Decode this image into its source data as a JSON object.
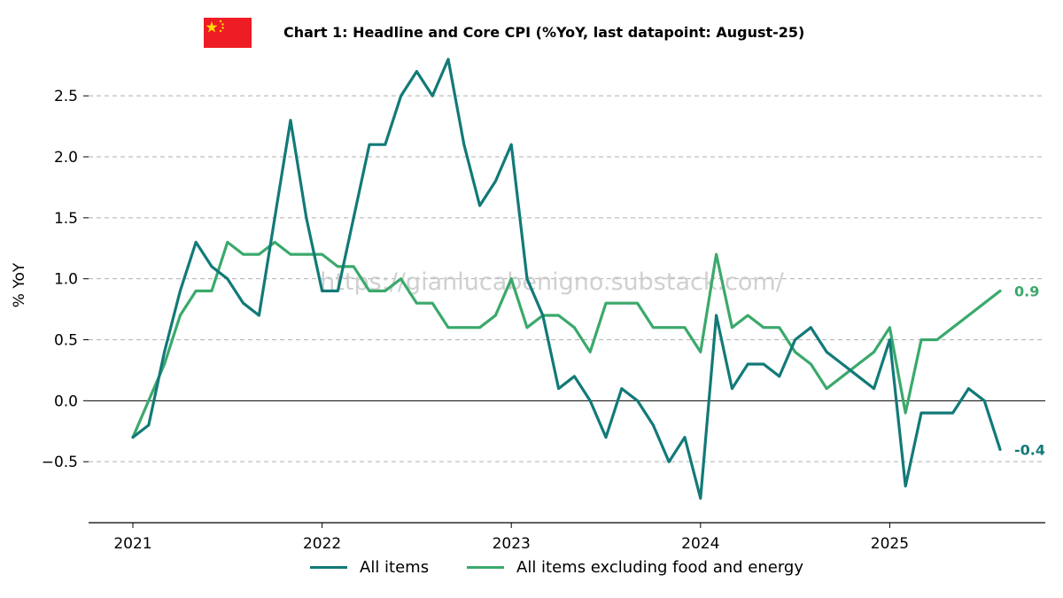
{
  "header": {
    "title": "Chart 1: Headline and Core CPI (%YoY, last datapoint: August-25)",
    "flag_icon": "china-flag-icon",
    "flag_colors": {
      "field": "#ee1c25",
      "stars": "#ffde00"
    }
  },
  "watermark": "https://gianlucabenigno.substack.com/",
  "colors": {
    "headline": "#127a78",
    "core": "#3aa96b",
    "zero_line": "#000000",
    "grid": "#b0b0b0"
  },
  "chart_data": {
    "type": "line",
    "title": "Chart 1: Headline and Core CPI (%YoY, last datapoint: August-25)",
    "ylabel": "% YoY",
    "xlabel": "",
    "ylim": [
      -1.0,
      2.85
    ],
    "xlim": [
      "2020-10",
      "2025-11"
    ],
    "yticks": [
      -0.5,
      0.0,
      0.5,
      1.0,
      1.5,
      2.0,
      2.5
    ],
    "ytick_labels": [
      "−0.5",
      "0.0",
      "0.5",
      "1.0",
      "1.5",
      "2.0",
      "2.5"
    ],
    "xticks": [
      "2021-01",
      "2022-01",
      "2023-01",
      "2024-01",
      "2025-01"
    ],
    "xtick_labels": [
      "2021",
      "2022",
      "2023",
      "2024",
      "2025"
    ],
    "grid": "horizontal dashed",
    "legend_position": "bottom-center",
    "x": [
      "2021-01",
      "2021-02",
      "2021-03",
      "2021-04",
      "2021-05",
      "2021-06",
      "2021-07",
      "2021-08",
      "2021-09",
      "2021-10",
      "2021-11",
      "2021-12",
      "2022-01",
      "2022-02",
      "2022-03",
      "2022-04",
      "2022-05",
      "2022-06",
      "2022-07",
      "2022-08",
      "2022-09",
      "2022-10",
      "2022-11",
      "2022-12",
      "2023-01",
      "2023-02",
      "2023-03",
      "2023-04",
      "2023-05",
      "2023-06",
      "2023-07",
      "2023-08",
      "2023-09",
      "2023-10",
      "2023-11",
      "2023-12",
      "2024-01",
      "2024-02",
      "2024-03",
      "2024-04",
      "2024-05",
      "2024-06",
      "2024-07",
      "2024-08",
      "2024-09",
      "2024-10",
      "2024-11",
      "2024-12",
      "2025-01",
      "2025-02",
      "2025-03",
      "2025-04",
      "2025-05",
      "2025-06",
      "2025-07",
      "2025-08"
    ],
    "series": [
      {
        "name": "All items",
        "color": "#127a78",
        "end_label": "-0.4",
        "values": [
          -0.3,
          -0.2,
          0.4,
          0.9,
          1.3,
          1.1,
          1.0,
          0.8,
          0.7,
          1.5,
          2.3,
          1.5,
          0.9,
          0.9,
          1.5,
          2.1,
          2.1,
          2.5,
          2.7,
          2.5,
          2.8,
          2.1,
          1.6,
          1.8,
          2.1,
          1.0,
          0.7,
          0.1,
          0.2,
          0.0,
          -0.3,
          0.1,
          0.0,
          -0.2,
          -0.5,
          -0.3,
          -0.8,
          0.7,
          0.1,
          0.3,
          0.3,
          0.2,
          0.5,
          0.6,
          0.4,
          0.3,
          0.2,
          0.1,
          0.5,
          -0.7,
          -0.1,
          -0.1,
          -0.1,
          0.1,
          0.0,
          -0.4
        ]
      },
      {
        "name": "All items excluding food and energy",
        "color": "#3aa96b",
        "end_label": "0.9",
        "values": [
          -0.3,
          0.0,
          0.3,
          0.7,
          0.9,
          0.9,
          1.3,
          1.2,
          1.2,
          1.3,
          1.2,
          1.2,
          1.2,
          1.1,
          1.1,
          0.9,
          0.9,
          1.0,
          0.8,
          0.8,
          0.6,
          0.6,
          0.6,
          0.7,
          1.0,
          0.6,
          0.7,
          0.7,
          0.6,
          0.4,
          0.8,
          0.8,
          0.8,
          0.6,
          0.6,
          0.6,
          0.4,
          1.2,
          0.6,
          0.7,
          0.6,
          0.6,
          0.4,
          0.3,
          0.1,
          0.2,
          0.3,
          0.4,
          0.6,
          -0.1,
          0.5,
          0.5,
          0.6,
          0.7,
          0.8,
          0.9
        ]
      }
    ]
  }
}
